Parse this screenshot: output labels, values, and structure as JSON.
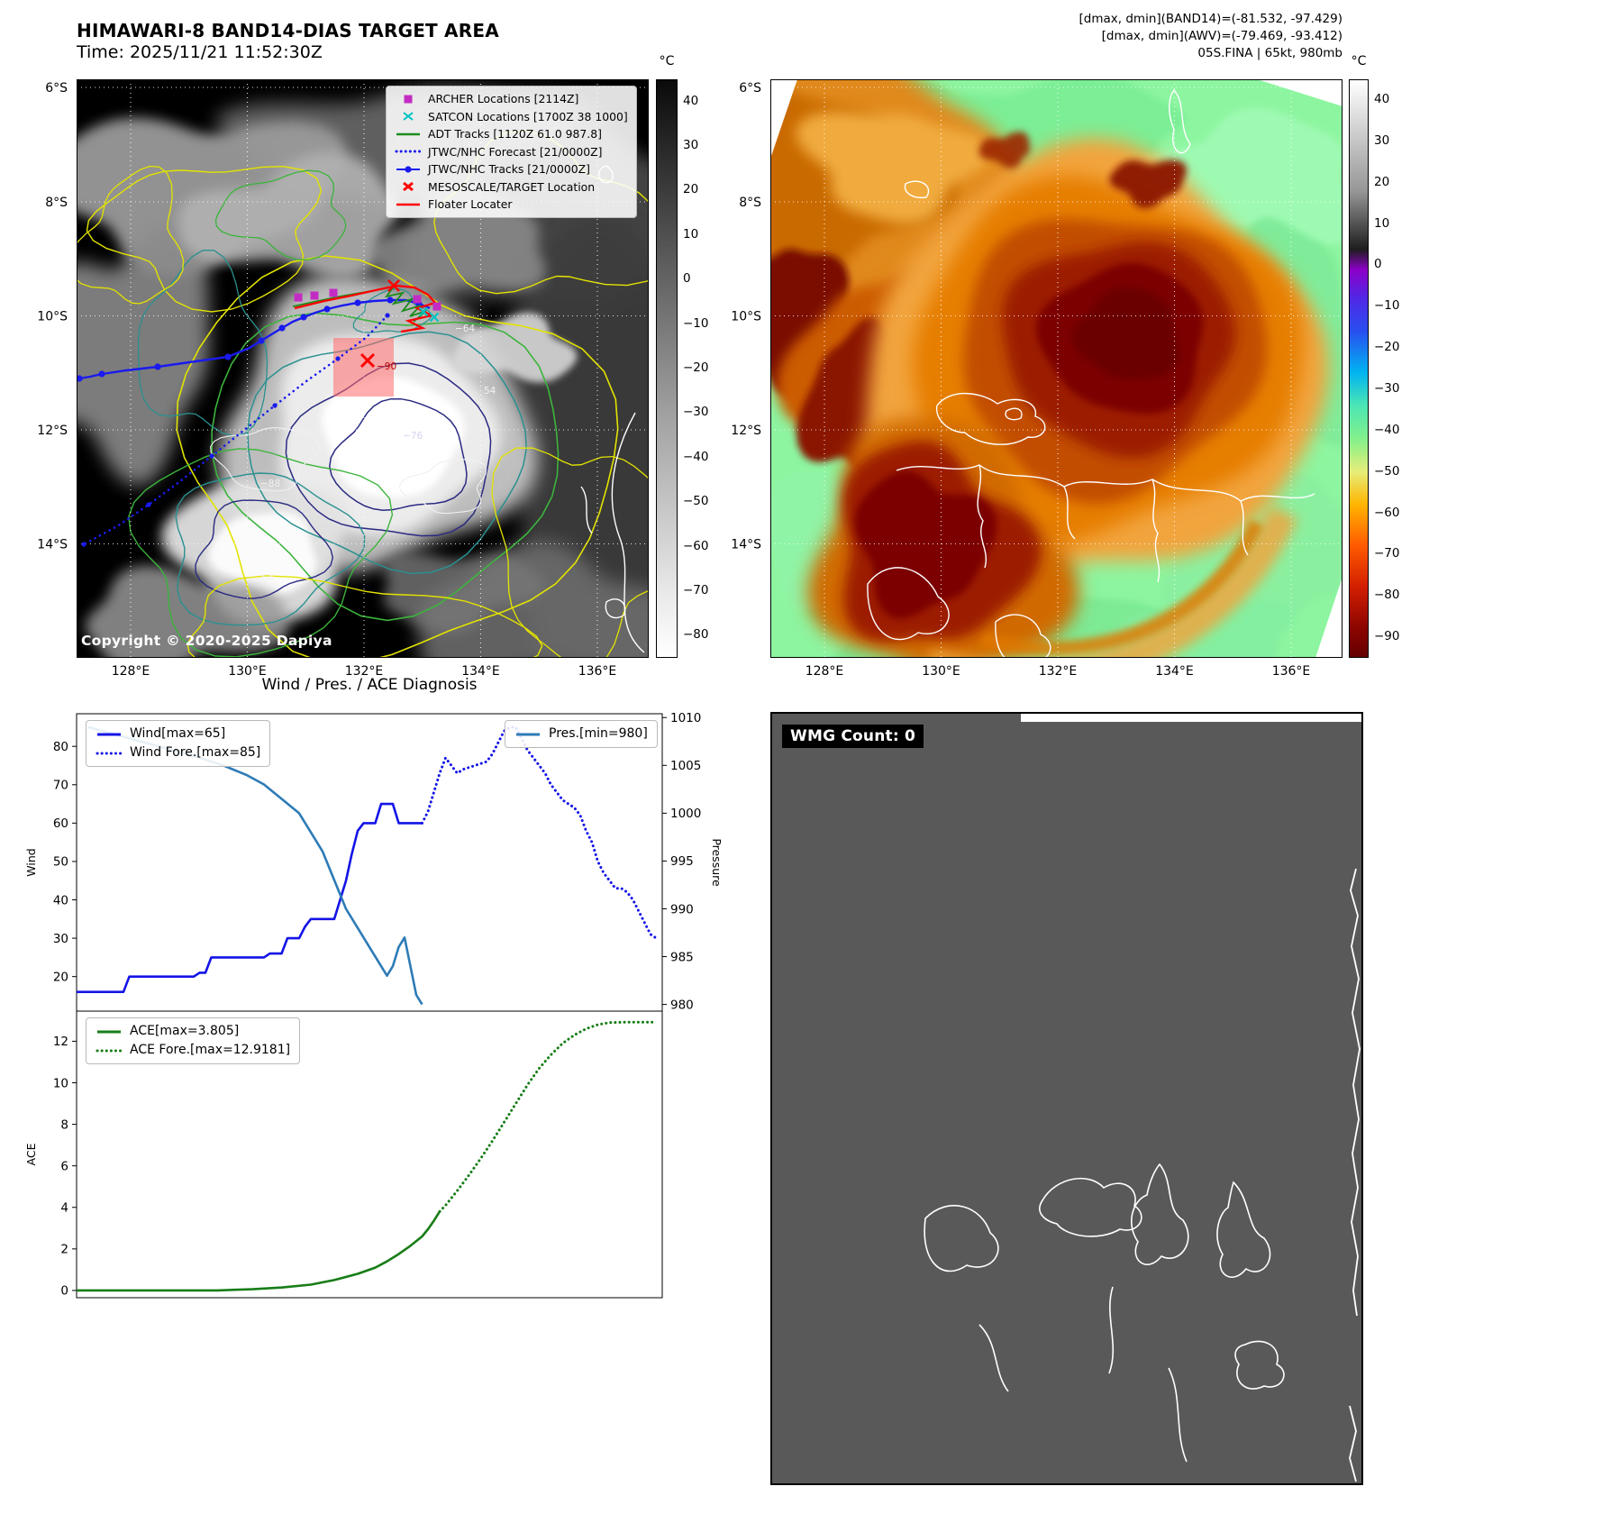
{
  "header": {
    "left_title": "HIMAWARI-8 BAND14-DIAS TARGET AREA",
    "left_time": "Time: 2025/11/21 11:52:30Z",
    "right_lines": [
      "[dmax, dmin](BAND14)=(-81.532, -97.429)",
      "[dmax, dmin](AWV)=(-79.469, -93.412)",
      "05S.FINA | 65kt, 980mb"
    ]
  },
  "left_map": {
    "lat_ticks": [
      "6°S",
      "8°S",
      "10°S",
      "12°S",
      "14°S"
    ],
    "lon_ticks": [
      "128°E",
      "130°E",
      "132°E",
      "134°E",
      "136°E"
    ],
    "copyright": "Copyright © 2020-2025 Dapiya",
    "contour_labels": [
      "-64",
      "54",
      "-76",
      "-88",
      "-64",
      "-90"
    ],
    "legend": [
      {
        "label": "ARCHER Locations [2114Z]",
        "marker": "square",
        "color": "#c32cc3"
      },
      {
        "label": "SATCON Locations [1700Z 38 1000]",
        "marker": "x",
        "color": "#00c3c3"
      },
      {
        "label": "ADT Tracks [1120Z 61.0 987.8]",
        "marker": "line",
        "color": "#1c8c1c"
      },
      {
        "label": "JTWC/NHC Forecast [21/0000Z]",
        "marker": "dotted-line",
        "color": "#1a1aee"
      },
      {
        "label": "JTWC/NHC Tracks [21/0000Z]",
        "marker": "line-marker",
        "color": "#1a1aee"
      },
      {
        "label": "MESOSCALE/TARGET Location",
        "marker": "x-bold",
        "color": "#ff0000"
      },
      {
        "label": "Floater Locater",
        "marker": "line",
        "color": "#ff0000"
      }
    ],
    "colorbar": {
      "unit": "°C",
      "range": [
        45,
        -85
      ],
      "ticks": [
        40,
        30,
        20,
        10,
        0,
        -10,
        -20,
        -30,
        -40,
        -50,
        -60,
        -70,
        -80
      ],
      "gradient_stops": [
        {
          "v": 45,
          "c": "#0a0a0a"
        },
        {
          "v": 10,
          "c": "#505050"
        },
        {
          "v": -30,
          "c": "#a0a0a0"
        },
        {
          "v": -70,
          "c": "#e8e8e8"
        },
        {
          "v": -85,
          "c": "#ffffff"
        }
      ]
    }
  },
  "right_map": {
    "lat_ticks": [
      "6°S",
      "8°S",
      "10°S",
      "12°S",
      "14°S"
    ],
    "lon_ticks": [
      "128°E",
      "130°E",
      "132°E",
      "134°E",
      "136°E"
    ],
    "colorbar": {
      "unit": "°C",
      "range": [
        45,
        -95
      ],
      "ticks": [
        40,
        30,
        20,
        10,
        0,
        -10,
        -20,
        -30,
        -40,
        -50,
        -60,
        -70,
        -80,
        -90
      ],
      "gradient_stops": [
        {
          "v": 45,
          "c": "#ffffff"
        },
        {
          "v": 18,
          "c": "#969696"
        },
        {
          "v": 4,
          "c": "#1e1e1e"
        },
        {
          "v": -1,
          "c": "#8c00c8"
        },
        {
          "v": -8,
          "c": "#5028e6"
        },
        {
          "v": -16,
          "c": "#2850f0"
        },
        {
          "v": -26,
          "c": "#00b4f0"
        },
        {
          "v": -34,
          "c": "#4be6b4"
        },
        {
          "v": -42,
          "c": "#82f08c"
        },
        {
          "v": -50,
          "c": "#e6ee78"
        },
        {
          "v": -58,
          "c": "#ffb400"
        },
        {
          "v": -68,
          "c": "#ff5a00"
        },
        {
          "v": -78,
          "c": "#d21e00"
        },
        {
          "v": -88,
          "c": "#8c0500"
        },
        {
          "v": -95,
          "c": "#640000"
        }
      ]
    }
  },
  "wmg": {
    "count_label": "WMG Count: 0"
  },
  "chart_data": [
    {
      "type": "line",
      "title": "Wind / Pres. / ACE Diagnosis",
      "x_axis": {
        "label": "",
        "range": [
          0,
          100
        ],
        "ticks_visible": false
      },
      "left_axis": {
        "label": "Wind",
        "range": [
          11,
          88.5
        ],
        "ticks": [
          20,
          30,
          40,
          50,
          60,
          70,
          80
        ]
      },
      "right_axis": {
        "label": "Pressure",
        "range": [
          979.3,
          1010.4
        ],
        "ticks": [
          980,
          985,
          990,
          995,
          1000,
          1005,
          1010
        ]
      },
      "grid": false,
      "legends": [
        {
          "position": "upper-left",
          "entries": [
            "Wind[max=65]",
            "Wind Fore.[max=85]"
          ]
        },
        {
          "position": "upper-right",
          "entries": [
            "Pres.[min=980]"
          ]
        }
      ],
      "series": [
        {
          "name": "Wind[max=65]",
          "axis": "left",
          "style": "solid",
          "color": "#1414e6",
          "points": [
            [
              0,
              16
            ],
            [
              8,
              16
            ],
            [
              9,
              20
            ],
            [
              20,
              20
            ],
            [
              21,
              21
            ],
            [
              22,
              21
            ],
            [
              23,
              25
            ],
            [
              32,
              25
            ],
            [
              33,
              26
            ],
            [
              35,
              26
            ],
            [
              36,
              30
            ],
            [
              38,
              30
            ],
            [
              39,
              33
            ],
            [
              40,
              35
            ],
            [
              44,
              35
            ],
            [
              45,
              40
            ],
            [
              46,
              45
            ],
            [
              47,
              52
            ],
            [
              48,
              58
            ],
            [
              49,
              60
            ],
            [
              51,
              60
            ],
            [
              52,
              65
            ],
            [
              54,
              65
            ],
            [
              55,
              60
            ],
            [
              59,
              60
            ]
          ]
        },
        {
          "name": "Wind Fore.[max=85]",
          "axis": "left",
          "style": "dotted",
          "color": "#1414e6",
          "points": [
            [
              59,
              60
            ],
            [
              60,
              63
            ],
            [
              61,
              68
            ],
            [
              62,
              73
            ],
            [
              63,
              77
            ],
            [
              64,
              75
            ],
            [
              65,
              73
            ],
            [
              66,
              74
            ],
            [
              68,
              75
            ],
            [
              70,
              76
            ],
            [
              71,
              78
            ],
            [
              72,
              81
            ],
            [
              73,
              84
            ],
            [
              74,
              85
            ],
            [
              75,
              85
            ],
            [
              76,
              82
            ],
            [
              77,
              79
            ],
            [
              78,
              77
            ],
            [
              79,
              75
            ],
            [
              80,
              73
            ],
            [
              81,
              70
            ],
            [
              82,
              68
            ],
            [
              83,
              66
            ],
            [
              84,
              65
            ],
            [
              85,
              64
            ],
            [
              86,
              62
            ],
            [
              87,
              58
            ],
            [
              88,
              55
            ],
            [
              89,
              50
            ],
            [
              90,
              47
            ],
            [
              91,
              45
            ],
            [
              92,
              43
            ],
            [
              93,
              43
            ],
            [
              94,
              42
            ],
            [
              95,
              40
            ],
            [
              96,
              37
            ],
            [
              97,
              34
            ],
            [
              98,
              31
            ],
            [
              99,
              30
            ]
          ]
        },
        {
          "name": "Pres.[min=980]",
          "axis": "right",
          "style": "solid",
          "color": "#2d7bb6",
          "points": [
            [
              2,
              1009
            ],
            [
              8,
              1008
            ],
            [
              14,
              1007
            ],
            [
              20,
              1006
            ],
            [
              25,
              1005
            ],
            [
              29,
              1004
            ],
            [
              32,
              1003
            ],
            [
              34,
              1002
            ],
            [
              36,
              1001
            ],
            [
              38,
              1000
            ],
            [
              40,
              998
            ],
            [
              42,
              996
            ],
            [
              44,
              993
            ],
            [
              46,
              990
            ],
            [
              48,
              988
            ],
            [
              50,
              986
            ],
            [
              52,
              984
            ],
            [
              53,
              983
            ],
            [
              54,
              984
            ],
            [
              55,
              986
            ],
            [
              56,
              987
            ],
            [
              57,
              984
            ],
            [
              58,
              981
            ],
            [
              59,
              980
            ]
          ]
        }
      ]
    },
    {
      "type": "line",
      "x_axis": {
        "label": "",
        "range": [
          0,
          100
        ],
        "ticks_visible": false
      },
      "left_axis": {
        "label": "ACE",
        "range": [
          -0.35,
          13.45
        ],
        "ticks": [
          0,
          2,
          4,
          6,
          8,
          10,
          12
        ]
      },
      "grid": false,
      "legends": [
        {
          "position": "upper-left",
          "entries": [
            "ACE[max=3.805]",
            "ACE Fore.[max=12.9181]"
          ]
        }
      ],
      "series": [
        {
          "name": "ACE[max=3.805]",
          "axis": "left",
          "style": "solid",
          "color": "#177d17",
          "points": [
            [
              0,
              0
            ],
            [
              24,
              0
            ],
            [
              30,
              0.06
            ],
            [
              35,
              0.14
            ],
            [
              40,
              0.28
            ],
            [
              44,
              0.5
            ],
            [
              48,
              0.8
            ],
            [
              51,
              1.1
            ],
            [
              53,
              1.4
            ],
            [
              55,
              1.75
            ],
            [
              57,
              2.15
            ],
            [
              59,
              2.6
            ],
            [
              60,
              2.95
            ],
            [
              61,
              3.35
            ],
            [
              62,
              3.805
            ]
          ]
        },
        {
          "name": "ACE Fore.[max=12.9181]",
          "axis": "left",
          "style": "dotted",
          "color": "#177d17",
          "points": [
            [
              62,
              3.805
            ],
            [
              63,
              4.1
            ],
            [
              65,
              4.8
            ],
            [
              67,
              5.55
            ],
            [
              69,
              6.35
            ],
            [
              71,
              7.2
            ],
            [
              73,
              8.1
            ],
            [
              75,
              9
            ],
            [
              77,
              9.9
            ],
            [
              79,
              10.7
            ],
            [
              81,
              11.35
            ],
            [
              83,
              11.9
            ],
            [
              85,
              12.3
            ],
            [
              87,
              12.6
            ],
            [
              89,
              12.8
            ],
            [
              91,
              12.9
            ],
            [
              94,
              12.92
            ],
            [
              97,
              12.92
            ],
            [
              99,
              12.92
            ]
          ]
        }
      ]
    }
  ]
}
